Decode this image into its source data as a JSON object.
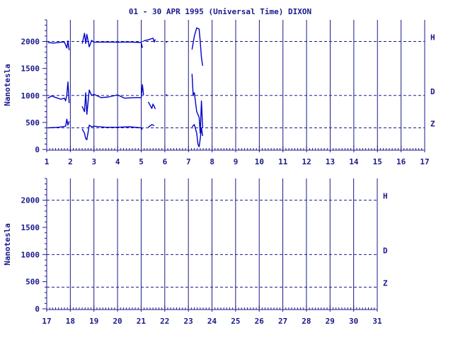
{
  "chart_data": [
    {
      "type": "line",
      "title": "01 - 30 APR 1995 (Universal Time) DIXON",
      "ylabel": "Nanotesla",
      "xlabel": "",
      "xlim": [
        1,
        17
      ],
      "ylim": [
        0,
        2400
      ],
      "yticks": [
        0,
        500,
        1000,
        1500,
        2000
      ],
      "xticks": [
        1,
        2,
        3,
        4,
        5,
        6,
        7,
        8,
        9,
        10,
        11,
        12,
        13,
        14,
        15,
        16,
        17
      ],
      "baselines": [
        {
          "name": "H",
          "value": 2000
        },
        {
          "name": "D",
          "value": 1000
        },
        {
          "name": "Z",
          "value": 400
        }
      ],
      "series": [
        {
          "name": "H",
          "segments": [
            {
              "x": [
                1.05,
                1.3,
                1.6,
                1.75,
                1.85,
                1.9,
                1.95
              ],
              "y": [
                1980,
                1970,
                1985,
                1990,
                1880,
                2010,
                1840
              ]
            },
            {
              "x": [
                2.5,
                2.6,
                2.65,
                2.7,
                2.8,
                2.9,
                3.0,
                3.5,
                4.0,
                4.5,
                5.0,
                5.05
              ],
              "y": [
                1960,
                2150,
                1960,
                2130,
                1900,
                2020,
                1985,
                1990,
                1985,
                1990,
                1980,
                1880
              ]
            },
            {
              "x": [
                5.1,
                5.3,
                5.5,
                5.55,
                5.6
              ],
              "y": [
                2010,
                2030,
                2060,
                1990,
                2040
              ]
            },
            {
              "x": [
                6.05,
                6.1
              ],
              "y": [
                1990,
                1985
              ]
            },
            {
              "x": [
                7.15,
                7.25,
                7.35,
                7.45,
                7.5,
                7.55,
                7.6
              ],
              "y": [
                1850,
                2100,
                2250,
                2230,
                2000,
                1700,
                1550
              ]
            }
          ]
        },
        {
          "name": "D",
          "segments": [
            {
              "x": [
                1.05,
                1.2,
                1.4,
                1.6,
                1.75,
                1.8,
                1.85,
                1.9,
                1.95
              ],
              "y": [
                950,
                990,
                960,
                930,
                950,
                900,
                1010,
                1250,
                860
              ]
            },
            {
              "x": [
                2.5,
                2.6,
                2.65,
                2.7,
                2.8,
                2.9,
                3.0,
                3.3,
                3.6,
                4.0,
                4.3,
                4.7,
                5.0,
                5.05,
                5.1
              ],
              "y": [
                800,
                700,
                1050,
                650,
                1100,
                1000,
                1020,
                960,
                970,
                1010,
                950,
                960,
                960,
                1200,
                1010
              ]
            },
            {
              "x": [
                5.3,
                5.45,
                5.5,
                5.6
              ],
              "y": [
                880,
                760,
                840,
                750
              ]
            },
            {
              "x": [
                6.05,
                6.1
              ],
              "y": [
                1020,
                990
              ]
            },
            {
              "x": [
                7.15,
                7.2,
                7.25,
                7.35,
                7.45,
                7.5,
                7.55,
                7.6
              ],
              "y": [
                1400,
                1000,
                1050,
                700,
                600,
                300,
                900,
                400
              ]
            }
          ]
        },
        {
          "name": "Z",
          "segments": [
            {
              "x": [
                1.05,
                1.5,
                1.8,
                1.85,
                1.9,
                1.95
              ],
              "y": [
                400,
                410,
                430,
                560,
                450,
                520
              ]
            },
            {
              "x": [
                2.5,
                2.6,
                2.65,
                2.7,
                2.8,
                2.9,
                3.0,
                3.5,
                4.0,
                4.5,
                5.0,
                5.05
              ],
              "y": [
                380,
                300,
                200,
                180,
                450,
                420,
                430,
                410,
                410,
                420,
                400,
                370
              ]
            },
            {
              "x": [
                5.3,
                5.45,
                5.55
              ],
              "y": [
                410,
                460,
                440
              ]
            },
            {
              "x": [
                7.15,
                7.25,
                7.35,
                7.4,
                7.45,
                7.5,
                7.55,
                7.6
              ],
              "y": [
                420,
                460,
                300,
                100,
                50,
                200,
                400,
                250
              ]
            }
          ]
        }
      ]
    },
    {
      "type": "line",
      "title": "",
      "ylabel": "Nanotesla",
      "xlabel": "",
      "xlim": [
        17,
        31
      ],
      "ylim": [
        0,
        2400
      ],
      "yticks": [
        0,
        500,
        1000,
        1500,
        2000
      ],
      "xticks": [
        17,
        18,
        19,
        20,
        21,
        22,
        23,
        24,
        25,
        26,
        27,
        28,
        29,
        30,
        31
      ],
      "baselines": [
        {
          "name": "H",
          "value": 2000
        },
        {
          "name": "D",
          "value": 1000
        },
        {
          "name": "Z",
          "value": 400
        }
      ],
      "series": []
    }
  ]
}
